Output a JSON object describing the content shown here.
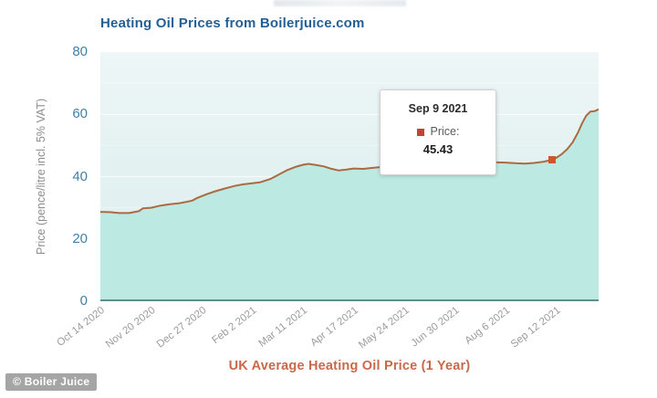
{
  "header": {
    "title": "Heating Oil Prices from Boilerjuice.com"
  },
  "watermark": "© Boiler Juice",
  "tooltip": {
    "date": "Sep 9 2021",
    "series_label": "Price:",
    "value": "45.43"
  },
  "colors": {
    "title_blue": "#235f97",
    "line": "#ab6b42",
    "area_fill": "#bde9e3",
    "marker": "#d2542c",
    "tooltip_swatch": "#bf4530",
    "y_tick_labels": "#3f81a9",
    "x_tick_labels": "#9c9c9c",
    "x_axis_title": "#c9684a",
    "axis_line": "#5e8f8f",
    "gridline": "#ffffff"
  },
  "chart_data": {
    "type": "area",
    "title": "Heating Oil Prices from Boilerjuice.com",
    "xlabel": "UK Average Heating Oil Price (1 Year)",
    "ylabel": "Price (pence/litre incl. 5% VAT)",
    "ylim": [
      0,
      80
    ],
    "y_ticks": [
      0,
      20,
      40,
      60,
      80
    ],
    "x_range_days": [
      0,
      364
    ],
    "grid": true,
    "legend": false,
    "x_ticks": [
      {
        "label": "Oct 14 2020",
        "day": 0
      },
      {
        "label": "Nov 20 2020",
        "day": 37
      },
      {
        "label": "Dec 27 2020",
        "day": 74
      },
      {
        "label": "Feb 2 2021",
        "day": 111
      },
      {
        "label": "Mar 11 2021",
        "day": 148
      },
      {
        "label": "Apr 17 2021",
        "day": 185
      },
      {
        "label": "May 24 2021",
        "day": 222
      },
      {
        "label": "Jun 30 2021",
        "day": 259
      },
      {
        "label": "Aug 6 2021",
        "day": 296
      },
      {
        "label": "Sep 12 2021",
        "day": 333
      }
    ],
    "series": [
      {
        "name": "Price",
        "dates": [
          "Oct 14 2020",
          "Oct 21 2020",
          "Oct 28 2020",
          "Nov 4 2020",
          "Nov 11 2020",
          "Nov 14 2020",
          "Nov 20 2020",
          "Nov 27 2020",
          "Dec 3 2020",
          "Dec 10 2020",
          "Dec 16 2020",
          "Dec 20 2020",
          "Dec 24 2020",
          "Dec 31 2020",
          "Jan 6 2021",
          "Jan 13 2021",
          "Jan 20 2021",
          "Jan 26 2021",
          "Feb 2 2021",
          "Feb 8 2021",
          "Feb 15 2021",
          "Feb 21 2021",
          "Feb 27 2021",
          "Mar 6 2021",
          "Mar 11 2021",
          "Mar 15 2021",
          "Mar 21 2021",
          "Mar 26 2021",
          "Mar 31 2021",
          "Apr 6 2021",
          "Apr 12 2021",
          "Apr 17 2021",
          "Apr 24 2021",
          "May 1 2021",
          "May 8 2021",
          "May 15 2021",
          "May 24 2021",
          "May 31 2021",
          "Jun 7 2021",
          "Jun 14 2021",
          "Jun 21 2021",
          "Jun 30 2021",
          "Jul 7 2021",
          "Jul 14 2021",
          "Jul 21 2021",
          "Jul 28 2021",
          "Aug 6 2021",
          "Aug 13 2021",
          "Aug 20 2021",
          "Aug 27 2021",
          "Sep 3 2021",
          "Sep 9 2021",
          "Sep 12 2021",
          "Sep 16 2021",
          "Sep 20 2021",
          "Sep 24 2021",
          "Sep 28 2021",
          "Oct 1 2021",
          "Oct 4 2021",
          "Oct 7 2021",
          "Oct 10 2021",
          "Oct 13 2021"
        ],
        "days": [
          0,
          7,
          14,
          21,
          28,
          31,
          37,
          44,
          50,
          57,
          63,
          67,
          71,
          78,
          84,
          91,
          98,
          104,
          111,
          117,
          124,
          130,
          136,
          143,
          148,
          152,
          158,
          163,
          168,
          174,
          180,
          185,
          192,
          199,
          206,
          213,
          222,
          229,
          236,
          243,
          250,
          259,
          266,
          273,
          280,
          287,
          296,
          303,
          310,
          317,
          324,
          330,
          333,
          337,
          341,
          345,
          349,
          352,
          355,
          358,
          361,
          364
        ],
        "values": [
          28.7,
          28.6,
          28.3,
          28.3,
          28.9,
          29.8,
          30.0,
          30.7,
          31.1,
          31.4,
          31.9,
          32.3,
          33.2,
          34.4,
          35.3,
          36.2,
          37.0,
          37.5,
          37.9,
          38.2,
          39.2,
          40.6,
          42.0,
          43.2,
          43.8,
          44.1,
          43.7,
          43.3,
          42.6,
          42.0,
          42.3,
          42.6,
          42.5,
          42.8,
          43.1,
          43.5,
          44.1,
          44.8,
          45.5,
          46.1,
          46.4,
          46.5,
          46.0,
          45.4,
          44.9,
          44.6,
          44.5,
          44.3,
          44.2,
          44.4,
          44.8,
          45.43,
          46.0,
          47.2,
          48.8,
          51.0,
          54.2,
          57.2,
          59.6,
          60.9,
          61.0,
          61.6
        ]
      }
    ],
    "highlight_point": {
      "date": "Sep 9 2021",
      "day": 330,
      "value": 45.43
    }
  }
}
